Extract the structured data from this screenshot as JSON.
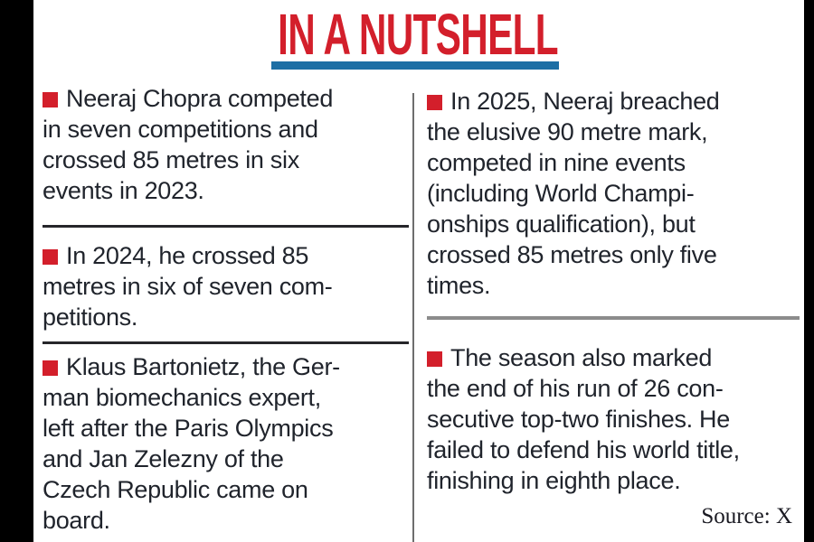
{
  "page": {
    "title": "IN A NUTSHELL",
    "source": "Source: X",
    "colors": {
      "accent_red": "#d31f2b",
      "underline_blue": "#1d6fa5",
      "text": "#20242c",
      "divider_dark": "#26262a",
      "divider_gray": "#8c8c8c",
      "edge_bar": "#000000"
    }
  },
  "columns": {
    "left": {
      "items": [
        {
          "text": "Neeraj Chopra competed\nin seven competitions and\ncrossed 85 metres in six\nevents in 2023."
        },
        {
          "text": "In 2024, he crossed 85\nmetres in six of seven com-\npetitions."
        },
        {
          "text": "Klaus Bartonietz, the Ger-\nman biomechanics expert,\nleft after the Paris Olympics\nand Jan Zelezny of the\nCzech Republic came on\nboard."
        }
      ]
    },
    "right": {
      "items": [
        {
          "text": "In 2025, Neeraj breached\nthe elusive 90 metre mark,\ncompeted in nine events\n(including World Champi-\nonships qualification), but\ncrossed 85 metres only five\ntimes."
        },
        {
          "text": "The season also marked\nthe end of his run of 26 con-\nsecutive top-two finishes. He\nfailed to defend his world title,\nfinishing in eighth place."
        }
      ]
    }
  }
}
